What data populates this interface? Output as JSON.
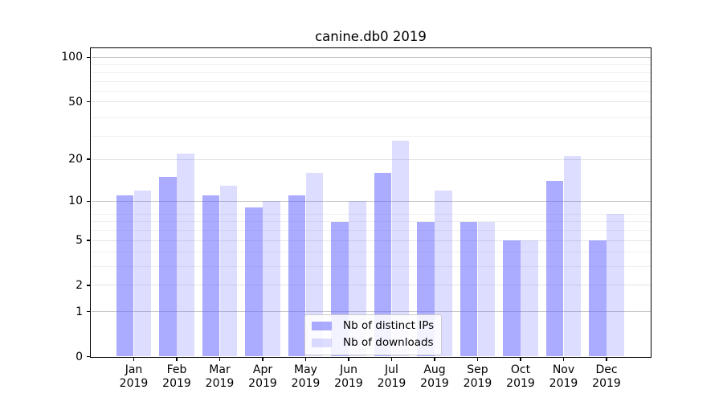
{
  "figure": {
    "title": "canine.db0 2019"
  },
  "chart_data": {
    "type": "bar",
    "title": "canine.db0 2019",
    "categories": [
      "Jan 2019",
      "Feb 2019",
      "Mar 2019",
      "Apr 2019",
      "May 2019",
      "Jun 2019",
      "Jul 2019",
      "Aug 2019",
      "Sep 2019",
      "Oct 2019",
      "Nov 2019",
      "Dec 2019"
    ],
    "series": [
      {
        "name": "Nb of distinct IPs",
        "values": [
          11,
          15,
          11,
          9,
          11,
          7,
          16,
          7,
          7,
          5,
          14,
          5
        ],
        "color": "rgba(102,102,255,0.55)"
      },
      {
        "name": "Nb of downloads",
        "values": [
          12,
          22,
          13,
          10,
          16,
          10,
          27,
          12,
          7,
          5,
          21,
          8
        ],
        "color": "rgba(102,102,255,0.22)"
      }
    ],
    "xlabel": "",
    "ylabel": "",
    "yscale": "log10(1+y)",
    "y_ticks": [
      0,
      1,
      2,
      5,
      10,
      20,
      50,
      100
    ],
    "ylim": [
      0,
      115
    ],
    "grid": true,
    "legend_position": "lower center"
  },
  "colors": {
    "bar_distinct_ips": "rgba(102,102,255,0.55)",
    "bar_downloads": "rgba(102,102,255,0.22)",
    "grid_decade": "#c6c6c6",
    "grid_major": "#e4e4e4",
    "grid_minor": "#f0f0f0",
    "spine": "#000000",
    "text": "#000000",
    "legend_border": "#cccccc",
    "legend_background": "#ffffff"
  }
}
